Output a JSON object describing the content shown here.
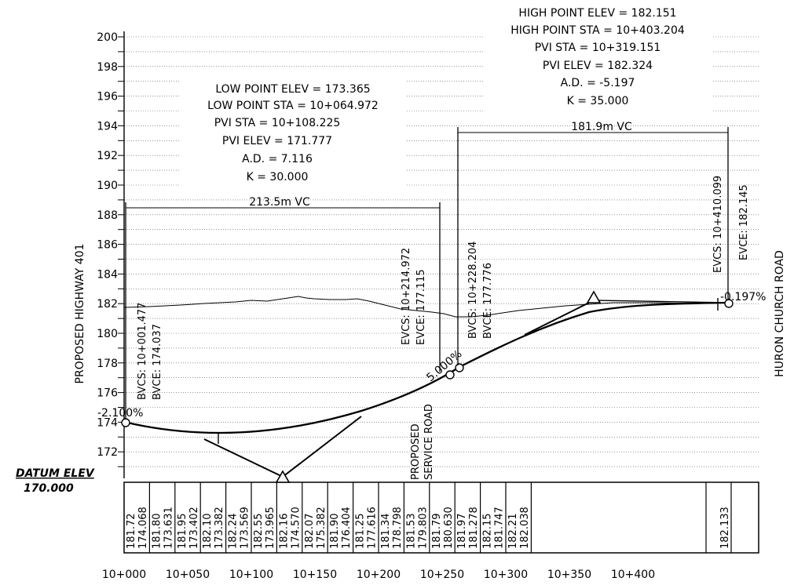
{
  "titles": {
    "left_vertical": "PROPOSED HIGHWAY 401",
    "right_vertical": "HURON CHURCH ROAD",
    "datum_label": "DATUM ELEV",
    "datum_value": "170.000"
  },
  "left_curve": {
    "lines": [
      "LOW POINT ELEV = 173.365",
      "LOW POINT STA = 10+064.972",
      "PVI STA = 10+108.225",
      "PVI ELEV = 171.777",
      "A.D. = 7.116",
      "K = 30.000"
    ],
    "length_label": "213.5m VC",
    "bvcs": "BVCS: 10+001.477",
    "bvce": "BVCE: 174.037",
    "evcs": "EVCS: 10+214.972",
    "evce": "EVCE: 177.115"
  },
  "right_curve": {
    "lines": [
      "HIGH POINT ELEV = 182.151",
      "HIGH POINT STA = 10+403.204",
      "PVI STA = 10+319.151",
      "PVI ELEV = 182.324",
      "A.D. = -5.197",
      "K = 35.000"
    ],
    "length_label": "181.9m VC",
    "bvcs": "BVCS: 10+228.204",
    "bvce": "BVCE: 177.776",
    "evcs": "EVCS: 10+410.099",
    "evce": "EVCE: 182.145"
  },
  "grades": {
    "left": "-2.100%",
    "middle": "5.000%",
    "right": "-0.197%"
  },
  "service_road": [
    "PROPOSED",
    "SERVICE ROAD"
  ],
  "y_ticks": [
    "200",
    "198",
    "196",
    "194",
    "192",
    "190",
    "188",
    "186",
    "184",
    "182",
    "180",
    "178",
    "176",
    "174",
    "172"
  ],
  "x_ticks": [
    "10+000",
    "10+050",
    "10+100",
    "10+150",
    "10+200",
    "10+250",
    "10+300",
    "10+350",
    "10+400"
  ],
  "elevation_table": [
    [
      "181.72",
      "174.068"
    ],
    [
      "181.80",
      "173.631"
    ],
    [
      "181.95",
      "173.402"
    ],
    [
      "182.10",
      "173.382"
    ],
    [
      "182.24",
      "173.569"
    ],
    [
      "182.55",
      "173.965"
    ],
    [
      "182.16",
      "174.570"
    ],
    [
      "182.07",
      "175.382"
    ],
    [
      "181.90",
      "176.404"
    ],
    [
      "181.25",
      "177.616"
    ],
    [
      "181.34",
      "178.798"
    ],
    [
      "181.53",
      "179.803"
    ],
    [
      "181.79",
      "180.630"
    ],
    [
      "181.97",
      "181.278"
    ],
    [
      "182.15",
      "181.747"
    ],
    [
      "182.21",
      "182.038"
    ],
    [
      "",
      "182.133"
    ]
  ]
}
